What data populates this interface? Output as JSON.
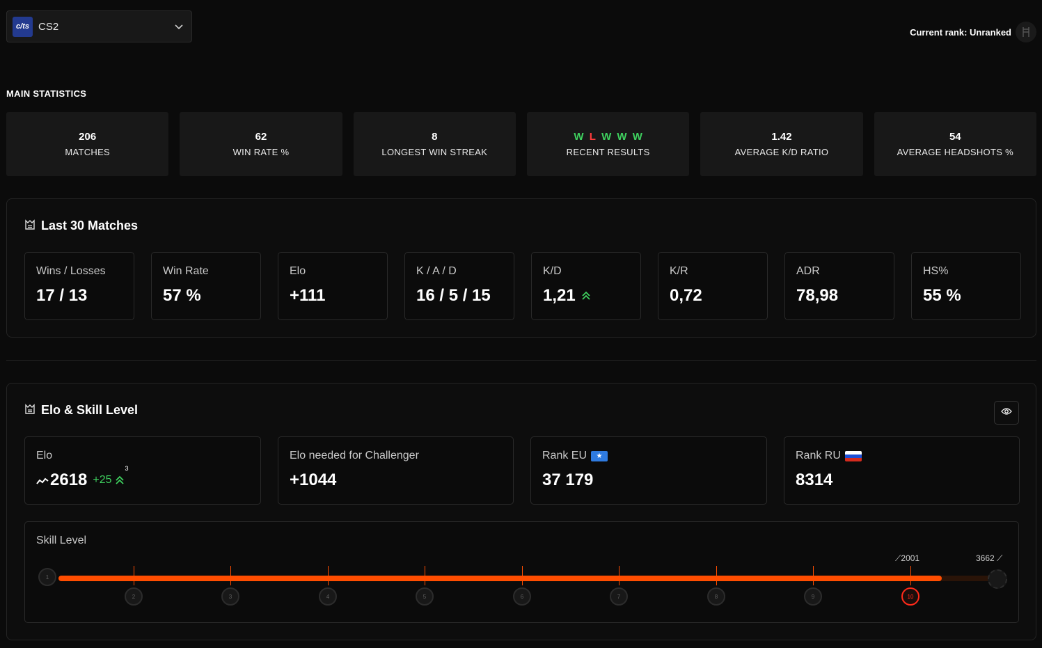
{
  "game_select": {
    "logo_text": "c/ts",
    "name": "CS2"
  },
  "rank": {
    "text": "Current rank: Unranked"
  },
  "main_stats": {
    "title": "MAIN STATISTICS",
    "cards": [
      {
        "value": "206",
        "label": "MATCHES"
      },
      {
        "value": "62",
        "label": "WIN RATE %"
      },
      {
        "value": "8",
        "label": "LONGEST WIN STREAK"
      },
      {
        "results": [
          "W",
          "L",
          "W",
          "W",
          "W"
        ],
        "label": "RECENT RESULTS"
      },
      {
        "value": "1.42",
        "label": "AVERAGE K/D RATIO"
      },
      {
        "value": "54",
        "label": "AVERAGE HEADSHOTS %"
      }
    ]
  },
  "last30": {
    "title": "Last 30 Matches",
    "cards": [
      {
        "label": "Wins / Losses",
        "value": "17 / 13"
      },
      {
        "label": "Win Rate",
        "value": "57 %"
      },
      {
        "label": "Elo",
        "value": "+111"
      },
      {
        "label": "K / A / D",
        "value": "16 / 5 / 15"
      },
      {
        "label": "K/D",
        "value": "1,21"
      },
      {
        "label": "K/R",
        "value": "0,72"
      },
      {
        "label": "ADR",
        "value": "78,98"
      },
      {
        "label": "HS%",
        "value": "55 %"
      }
    ]
  },
  "elo_skill": {
    "title": "Elo & Skill Level",
    "elo": {
      "label": "Elo",
      "value": "2618",
      "delta": "+25",
      "streak": "3"
    },
    "challenger": {
      "label": "Elo needed for Challenger",
      "value": "+1044"
    },
    "rank_eu": {
      "label": "Rank EU",
      "value": "37 179"
    },
    "rank_ru": {
      "label": "Rank RU",
      "value": "8314"
    },
    "skill": {
      "label": "Skill Level",
      "current_level": 10,
      "level_min_marker": "2001",
      "max_marker": "3662",
      "levels": [
        "1",
        "2",
        "3",
        "4",
        "5",
        "6",
        "7",
        "8",
        "9",
        "10"
      ],
      "progress": 0.94
    }
  },
  "colors": {
    "accent": "#ff4d00",
    "win": "#3fd15f",
    "loss": "#ff3b3b"
  }
}
